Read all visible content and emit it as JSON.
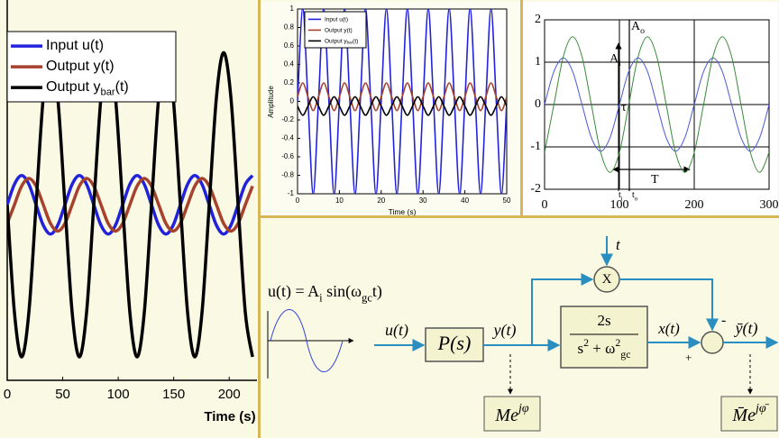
{
  "chart_data": [
    {
      "type": "line",
      "x_label": "Time (s)",
      "legend": "upper left",
      "x": [
        0,
        6.5,
        13,
        19.5,
        26,
        32.5,
        39,
        45.5,
        52,
        58.5,
        65,
        71.5,
        78,
        84.5,
        91,
        97.5,
        104,
        110.5,
        117,
        123.5,
        130,
        136.5,
        143,
        149.5,
        156,
        162.5,
        169,
        175.5,
        182,
        188.5,
        195,
        201.5,
        208,
        214.5,
        221
      ],
      "xlim": [
        0,
        225
      ],
      "xticks": [
        0,
        50,
        100,
        150,
        200
      ],
      "ylim": [
        -3,
        3.5
      ],
      "grid": false,
      "series": [
        {
          "name": "Input u(t)",
          "color": "#2222dd",
          "values": [
            0,
            0.35,
            0.5,
            0.35,
            0,
            -0.35,
            -0.5,
            -0.35,
            0,
            0.35,
            0.5,
            0.35,
            0,
            -0.35,
            -0.5,
            -0.35,
            0,
            0.35,
            0.5,
            0.35,
            0,
            -0.35,
            -0.5,
            -0.35,
            0,
            0.35,
            0.5,
            0.35,
            0,
            -0.35,
            -0.5,
            -0.35,
            0,
            0.35,
            0.5
          ]
        },
        {
          "name": "Output y(t)",
          "color": "#a5412c",
          "values": [
            -0.32,
            0,
            0.32,
            0.45,
            0.32,
            0,
            -0.32,
            -0.45,
            -0.32,
            0,
            0.32,
            0.45,
            0.32,
            0,
            -0.32,
            -0.45,
            -0.32,
            0,
            0.32,
            0.45,
            0.32,
            0,
            -0.32,
            -0.45,
            -0.32,
            0,
            0.32,
            0.45,
            0.32,
            0,
            -0.32,
            -0.45,
            -0.32,
            0,
            0.32
          ]
        },
        {
          "name": "Output y_{bar}(t)",
          "color": "#000000",
          "values": [
            0,
            -1.84,
            -2.6,
            -1.84,
            0,
            1.84,
            2.6,
            1.84,
            0,
            -1.84,
            -2.6,
            -1.84,
            0,
            1.84,
            2.6,
            1.84,
            0,
            -1.84,
            -2.6,
            -1.84,
            0,
            1.84,
            2.6,
            1.84,
            0,
            -1.84,
            -2.6,
            -1.84,
            0,
            1.84,
            2.6,
            1.84,
            0,
            -1.84,
            -2.6
          ]
        }
      ]
    },
    {
      "type": "line",
      "x_label": "Time (s)",
      "y_label": "Amplitude",
      "legend": "upper left",
      "x": [
        0,
        1.25,
        2.5,
        3.75,
        5,
        6.25,
        7.5,
        8.75,
        10,
        11.25,
        12.5,
        13.75,
        15,
        16.25,
        17.5,
        18.75,
        20,
        21.25,
        22.5,
        23.75,
        25,
        26.25,
        27.5,
        28.75,
        30,
        31.25,
        32.5,
        33.75,
        35,
        36.25,
        37.5,
        38.75,
        40,
        41.25,
        42.5,
        43.75,
        45,
        46.25,
        47.5,
        48.75,
        50
      ],
      "xlim": [
        0,
        50
      ],
      "xticks": [
        0,
        10,
        20,
        30,
        40,
        50
      ],
      "ylim": [
        -1,
        1
      ],
      "yticks": [
        -1,
        -0.8,
        -0.6,
        -0.4,
        -0.2,
        0,
        0.2,
        0.4,
        0.6,
        0.8,
        1
      ],
      "grid": false,
      "series": [
        {
          "name": "Input u(t)",
          "color": "#2222dd",
          "values": [
            0,
            1,
            0,
            -1,
            0,
            1,
            0,
            -1,
            0,
            1,
            0,
            -1,
            0,
            1,
            0,
            -1,
            0,
            1,
            0,
            -1,
            0,
            1,
            0,
            -1,
            0,
            1,
            0,
            -1,
            0,
            1,
            0,
            -1,
            0,
            1,
            0,
            -1,
            0,
            1,
            0,
            -1,
            0
          ]
        },
        {
          "name": "Output y(t)",
          "color": "#a5412c",
          "values": [
            0.05,
            0.2,
            0.05,
            -0.1,
            0.05,
            0.2,
            0.05,
            -0.1,
            0.05,
            0.2,
            0.05,
            -0.1,
            0.05,
            0.2,
            0.05,
            -0.1,
            0.05,
            0.2,
            0.05,
            -0.1,
            0.05,
            0.2,
            0.05,
            -0.1,
            0.05,
            0.2,
            0.05,
            -0.1,
            0.05,
            0.2,
            0.05,
            -0.1,
            0.05,
            0.2,
            0.05,
            -0.1,
            0.05,
            0.2,
            0.05,
            -0.1,
            0.05
          ]
        },
        {
          "name": "Output y_{bar}(t)",
          "color": "#000000",
          "values": [
            -0.05,
            -0.15,
            -0.05,
            0.05,
            -0.05,
            -0.15,
            -0.05,
            0.05,
            -0.05,
            -0.15,
            -0.05,
            0.05,
            -0.05,
            -0.15,
            -0.05,
            0.05,
            -0.05,
            -0.15,
            -0.05,
            0.05,
            -0.05,
            -0.15,
            -0.05,
            0.05,
            -0.05,
            -0.15,
            -0.05,
            0.05,
            -0.05,
            -0.15,
            -0.05,
            0.05,
            -0.05,
            -0.15,
            -0.05,
            0.05,
            -0.05,
            -0.15,
            -0.05,
            0.05,
            -0.05
          ]
        }
      ]
    },
    {
      "type": "line",
      "grid": true,
      "x": [
        0,
        12.5,
        25,
        37.5,
        50,
        62.5,
        75,
        87.5,
        100,
        112.5,
        125,
        137.5,
        150,
        162.5,
        175,
        187.5,
        200,
        212.5,
        225,
        237.5,
        250,
        262.5,
        275,
        287.5,
        300
      ],
      "xlim": [
        0,
        300
      ],
      "xticks": [
        0,
        100,
        200,
        300
      ],
      "ylim": [
        -2,
        2
      ],
      "yticks": [
        -2,
        -1,
        0,
        1,
        2
      ],
      "annotations": [
        "A_{o}",
        "A_{i}",
        "τ",
        "T",
        "t_{i}",
        "t_{o}"
      ],
      "series": [
        {
          "color": "#4a58d8",
          "values": [
            0,
            0.78,
            1.1,
            0.78,
            0,
            -0.78,
            -1.1,
            -0.78,
            0,
            0.78,
            1.1,
            0.78,
            0,
            -0.78,
            -1.1,
            -0.78,
            0,
            0.78,
            1.1,
            0.78,
            0,
            -0.78,
            -1.1,
            -0.78,
            0
          ]
        },
        {
          "color": "#3a8a3a",
          "values": [
            -1.13,
            0,
            1.13,
            1.6,
            1.13,
            0,
            -1.13,
            -1.6,
            -1.13,
            0,
            1.13,
            1.6,
            1.13,
            0,
            -1.13,
            -1.6,
            -1.13,
            0,
            1.13,
            1.6,
            1.13,
            0,
            -1.13,
            -1.6,
            -1.13
          ]
        }
      ]
    }
  ],
  "diagram": {
    "formula": "u(t) = A_{i} sin(ω_{gc}t)",
    "input": "u(t)",
    "plant": "P(s)",
    "output": "y(t)",
    "filter_num": "2s",
    "filter_den": "s^{2} + ω^{2}_{gc}",
    "filtered": "x(t)",
    "time": "t",
    "multiply": "X",
    "minus": "-",
    "plus": "+",
    "result": "ȳ(t)",
    "phasor_in": "Me^{jφ}",
    "phasor_out": "M̄e^{jφ̄}"
  }
}
